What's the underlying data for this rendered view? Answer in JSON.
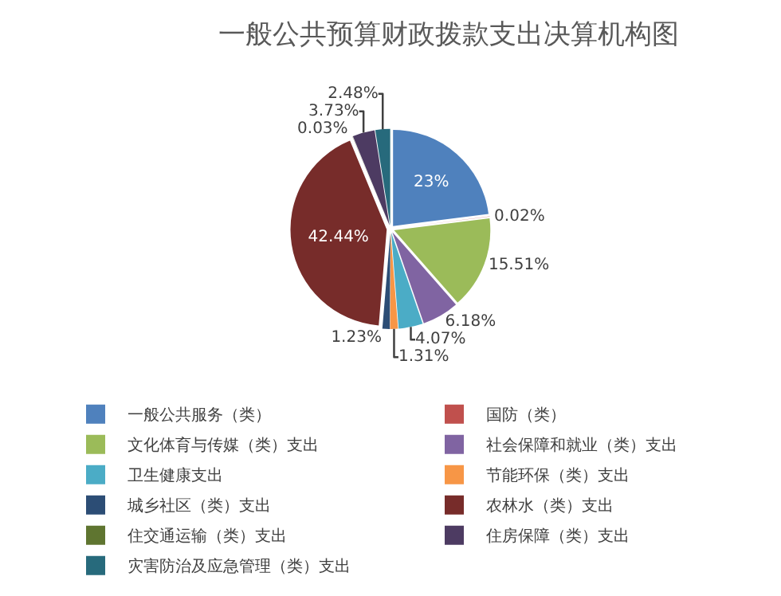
{
  "chart_data": {
    "type": "pie",
    "title": "一般公共预算财政拨款支出决算机构图",
    "categories": [
      "一般公共服务（类）",
      "国防（类）",
      "文化体育与传媒（类）支出",
      "社会保障和就业（类）支出",
      "卫生健康支出",
      "节能环保（类）支出",
      "城乡社区（类）支出",
      "农林水（类）支出",
      "住交通运输（类）支出",
      "住房保障（类）支出",
      "灾害防治及应急管理（类）支出"
    ],
    "values": [
      23,
      0.02,
      15.51,
      6.18,
      4.07,
      1.31,
      1.23,
      42.44,
      0.03,
      3.73,
      2.48
    ],
    "value_labels": [
      "23%",
      "0.02%",
      "15.51%",
      "6.18%",
      "4.07%",
      "1.31%",
      "1.23%",
      "42.44%",
      "0.03%",
      "3.73%",
      "2.48%"
    ],
    "colors": [
      "#4f81bd",
      "#c0504d",
      "#9bbb59",
      "#8064a2",
      "#4bacc6",
      "#f79646",
      "#2c4d75",
      "#772c2a",
      "#5f7530",
      "#4d3b62",
      "#276a7c"
    ],
    "legend": "bottom"
  }
}
